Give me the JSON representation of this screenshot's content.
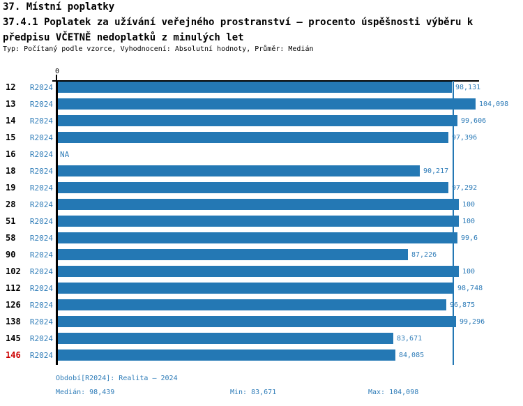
{
  "header": {
    "section_title": "37. Místní poplatky",
    "subtitle_line1": "37.4.1 Poplatek za užívání veřejného prostranství – procento úspěšnosti výběru k",
    "subtitle_line2": "předpisu VČETNĚ nedoplatků z minulých let",
    "meta": "Typ: Počítaný podle vzorce, Vyhodnocení: Absolutní hodnoty, Průměr: Medián"
  },
  "chart_data": {
    "type": "bar",
    "orientation": "horizontal",
    "title": "37.4.1 Poplatek za užívání veřejného prostranství – procento úspěšnosti výběru k předpisu VČETNĚ nedoplatků z minulých let",
    "xlabel": "",
    "ylabel": "",
    "x_axis": {
      "zero_label": "0",
      "min": 0,
      "max": 104.098,
      "gridlines": false
    },
    "median_line_value": 98.439,
    "period_label": "R2024",
    "rows": [
      {
        "category": "12",
        "period": "R2024",
        "value": 98.131,
        "value_label": "98,131",
        "highlighted": false
      },
      {
        "category": "13",
        "period": "R2024",
        "value": 104.098,
        "value_label": "104,098",
        "highlighted": false
      },
      {
        "category": "14",
        "period": "R2024",
        "value": 99.606,
        "value_label": "99,606",
        "highlighted": false
      },
      {
        "category": "15",
        "period": "R2024",
        "value": 97.396,
        "value_label": "97,396",
        "highlighted": false
      },
      {
        "category": "16",
        "period": "R2024",
        "value": null,
        "value_label": "NA",
        "highlighted": false
      },
      {
        "category": "18",
        "period": "R2024",
        "value": 90.217,
        "value_label": "90,217",
        "highlighted": false
      },
      {
        "category": "19",
        "period": "R2024",
        "value": 97.292,
        "value_label": "97,292",
        "highlighted": false
      },
      {
        "category": "28",
        "period": "R2024",
        "value": 100,
        "value_label": "100",
        "highlighted": false
      },
      {
        "category": "51",
        "period": "R2024",
        "value": 100,
        "value_label": "100",
        "highlighted": false
      },
      {
        "category": "58",
        "period": "R2024",
        "value": 99.6,
        "value_label": "99,6",
        "highlighted": false
      },
      {
        "category": "90",
        "period": "R2024",
        "value": 87.226,
        "value_label": "87,226",
        "highlighted": false
      },
      {
        "category": "102",
        "period": "R2024",
        "value": 100,
        "value_label": "100",
        "highlighted": false
      },
      {
        "category": "112",
        "period": "R2024",
        "value": 98.748,
        "value_label": "98,748",
        "highlighted": false
      },
      {
        "category": "126",
        "period": "R2024",
        "value": 96.875,
        "value_label": "96,875",
        "highlighted": false
      },
      {
        "category": "138",
        "period": "R2024",
        "value": 99.296,
        "value_label": "99,296",
        "highlighted": false
      },
      {
        "category": "145",
        "period": "R2024",
        "value": 83.671,
        "value_label": "83,671",
        "highlighted": false
      },
      {
        "category": "146",
        "period": "R2024",
        "value": 84.085,
        "value_label": "84,085",
        "highlighted": true
      }
    ],
    "colors": {
      "bar": "#2478b4",
      "blue_text": "#2e7cb8",
      "median_line": "#2478b4",
      "highlight_red": "#cc0000",
      "axis": "#000000"
    },
    "legend": null,
    "summary": {
      "median": 98.439,
      "min": 83.671,
      "max": 104.098
    }
  },
  "footer": {
    "period_info": "Období[R2024]: Realita – 2024",
    "median": "Medián: 98,439",
    "min": "Min: 83,671",
    "max": "Max: 104,098"
  }
}
